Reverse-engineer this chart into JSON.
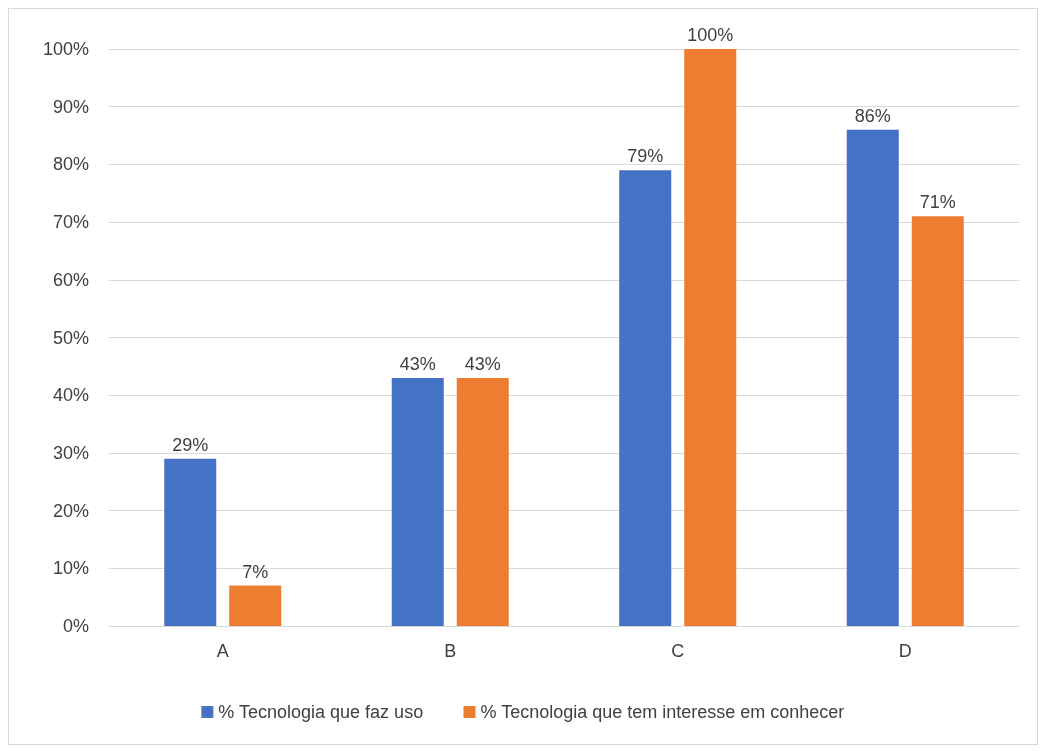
{
  "chart_data": {
    "type": "bar",
    "categories": [
      "A",
      "B",
      "C",
      "D"
    ],
    "series": [
      {
        "name": "% Tecnologia que faz uso",
        "color": "#4472c4",
        "values": [
          29,
          43,
          79,
          86
        ],
        "value_labels": [
          "29%",
          "43%",
          "79%",
          "86%"
        ]
      },
      {
        "name": "% Tecnologia que tem interesse em conhecer",
        "color": "#ed7d31",
        "values": [
          7,
          43,
          100,
          71
        ],
        "value_labels": [
          "7%",
          "43%",
          "100%",
          "71%"
        ]
      }
    ],
    "ylim": [
      0,
      100
    ],
    "yticks": [
      {
        "value": 0,
        "label": "0%"
      },
      {
        "value": 10,
        "label": "10%"
      },
      {
        "value": 20,
        "label": "20%"
      },
      {
        "value": 30,
        "label": "30%"
      },
      {
        "value": 40,
        "label": "40%"
      },
      {
        "value": 50,
        "label": "50%"
      },
      {
        "value": 60,
        "label": "60%"
      },
      {
        "value": 70,
        "label": "70%"
      },
      {
        "value": 80,
        "label": "80%"
      },
      {
        "value": 90,
        "label": "90%"
      },
      {
        "value": 100,
        "label": "100%"
      }
    ],
    "grid": "y",
    "legend": "bottom"
  }
}
